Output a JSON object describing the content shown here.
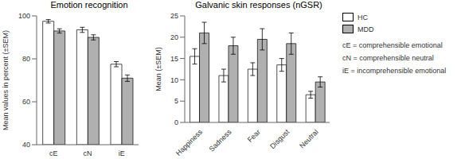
{
  "chart_data": [
    {
      "type": "bar",
      "title": "Emotion recognition",
      "ylabel": "Mean values in percent (±SEM)",
      "categories": [
        "cE",
        "cN",
        "iE"
      ],
      "series": [
        {
          "name": "HC",
          "color": "#ffffff",
          "values": [
            97.5,
            93.5,
            77.5
          ],
          "errors": [
            0.8,
            1.2,
            1.2
          ]
        },
        {
          "name": "MDD",
          "color": "#b0b0b0",
          "values": [
            93.0,
            90.0,
            71.0
          ],
          "errors": [
            1.0,
            1.2,
            1.5
          ]
        }
      ],
      "ylim": [
        40,
        100
      ],
      "yticks": [
        40,
        60,
        80,
        100
      ]
    },
    {
      "type": "bar",
      "title": "Galvanic skin responses (nGSR)",
      "ylabel": "Mean (±SEM)",
      "categories": [
        "Happiness",
        "Sadness",
        "Fear",
        "Disgust",
        "Neutral"
      ],
      "series": [
        {
          "name": "HC",
          "color": "#ffffff",
          "values": [
            15.5,
            11.0,
            12.5,
            13.5,
            6.5
          ],
          "errors": [
            1.8,
            1.5,
            1.5,
            1.5,
            0.8
          ]
        },
        {
          "name": "MDD",
          "color": "#b0b0b0",
          "values": [
            21.0,
            18.0,
            19.5,
            18.5,
            9.5
          ],
          "errors": [
            2.5,
            2.0,
            2.5,
            2.5,
            1.2
          ]
        }
      ],
      "ylim": [
        0,
        25
      ],
      "yticks": [
        0,
        5,
        10,
        15,
        20,
        25
      ],
      "legend": "right",
      "annotations": [
        "cE = comprehensible emotional",
        "cN = comprehensible neutral",
        "iE = incomprehensible emotional"
      ]
    }
  ]
}
